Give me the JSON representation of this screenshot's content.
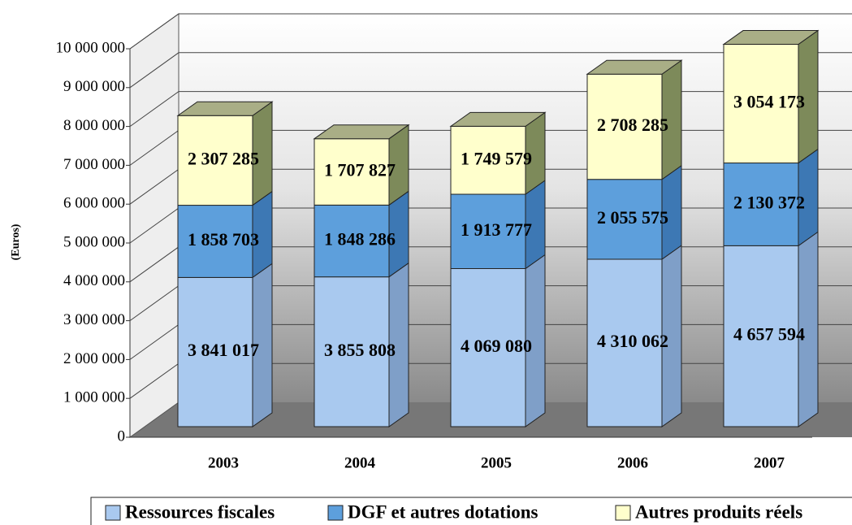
{
  "chart_data": {
    "type": "bar",
    "stacked": true,
    "y_label": "(Euros)",
    "categories": [
      "2003",
      "2004",
      "2005",
      "2006",
      "2007"
    ],
    "series": [
      {
        "name": "Ressources fiscales",
        "color": "#a9c9ef",
        "values": [
          3841017,
          3855808,
          4069080,
          4310062,
          4657594
        ],
        "value_labels": [
          "3 841 017",
          "3 855 808",
          "4 069 080",
          "4 310 062",
          "4 657 594"
        ]
      },
      {
        "name": "DGF et autres dotations",
        "color": "#5d9fdc",
        "values": [
          1858703,
          1848286,
          1913777,
          2055575,
          2130372
        ],
        "value_labels": [
          "1 858 703",
          "1 848 286",
          "1 913 777",
          "2 055 575",
          "2 130 372"
        ]
      },
      {
        "name": "Autres produits réels",
        "color": "#ffffcc",
        "values": [
          2307285,
          1707827,
          1749579,
          2708285,
          3054173
        ],
        "value_labels": [
          "2 307 285",
          "1 707 827",
          "1 749 579",
          "2 708 285",
          "3 054 173"
        ]
      }
    ],
    "ylim": [
      0,
      10000000
    ],
    "yticks": [
      {
        "value": 0,
        "label": "0"
      },
      {
        "value": 1000000,
        "label": "1 000 000"
      },
      {
        "value": 2000000,
        "label": "2 000 000"
      },
      {
        "value": 3000000,
        "label": "3 000 000"
      },
      {
        "value": 4000000,
        "label": "4 000 000"
      },
      {
        "value": 5000000,
        "label": "5 000 000"
      },
      {
        "value": 6000000,
        "label": "6 000 000"
      },
      {
        "value": 7000000,
        "label": "7 000 000"
      },
      {
        "value": 8000000,
        "label": "8 000 000"
      },
      {
        "value": 9000000,
        "label": "9 000 000"
      },
      {
        "value": 10000000,
        "label": "10 000 000"
      }
    ],
    "grid": true,
    "legend": "bottom"
  }
}
